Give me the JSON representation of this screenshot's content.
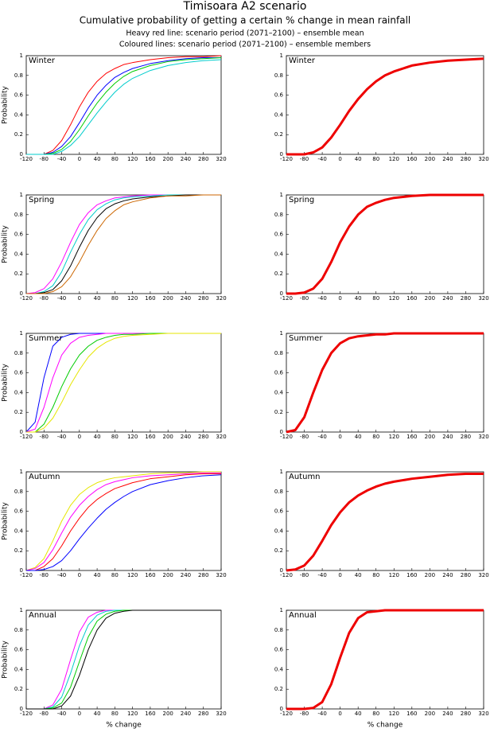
{
  "header": {
    "title": "Timisoara A2 scenario",
    "subtitle": "Cumulative probability of getting a certain % change in mean rainfall",
    "note1": "Heavy red line: scenario period (2071–2100) – ensemble mean",
    "note2": "Coloured lines: scenario period (2071–2100) – ensemble members"
  },
  "chart_data": [
    {
      "type": "line",
      "annotation": "Winter",
      "ylabel": "Probability",
      "x": [
        -120,
        -100,
        -80,
        -60,
        -40,
        -20,
        0,
        20,
        40,
        60,
        80,
        100,
        120,
        160,
        200,
        240,
        280,
        320
      ],
      "xlim": [
        -120,
        320
      ],
      "ylim": [
        0,
        1
      ],
      "xticks": [
        -120,
        -80,
        -40,
        0,
        40,
        80,
        120,
        160,
        200,
        240,
        280,
        320
      ],
      "yticks": [
        0,
        0.2,
        0.4,
        0.6,
        0.8,
        1
      ],
      "line_width": 1,
      "series": [
        {
          "color": "#ff0000",
          "values": [
            0,
            0,
            0,
            0.04,
            0.14,
            0.3,
            0.48,
            0.63,
            0.74,
            0.82,
            0.87,
            0.91,
            0.93,
            0.96,
            0.98,
            0.99,
            0.99,
            1
          ]
        },
        {
          "color": "#0000ff",
          "values": [
            0,
            0,
            0,
            0.02,
            0.08,
            0.18,
            0.32,
            0.47,
            0.6,
            0.7,
            0.78,
            0.83,
            0.87,
            0.92,
            0.95,
            0.97,
            0.98,
            0.98
          ]
        },
        {
          "color": "#00cc00",
          "values": [
            0,
            0,
            0,
            0.01,
            0.05,
            0.13,
            0.25,
            0.39,
            0.52,
            0.63,
            0.72,
            0.79,
            0.84,
            0.9,
            0.94,
            0.96,
            0.97,
            0.98
          ]
        },
        {
          "color": "#00cccc",
          "values": [
            0,
            0,
            0,
            0,
            0.03,
            0.09,
            0.18,
            0.3,
            0.42,
            0.53,
            0.63,
            0.71,
            0.77,
            0.85,
            0.9,
            0.93,
            0.95,
            0.96
          ]
        }
      ]
    },
    {
      "type": "line",
      "annotation": "Winter",
      "x": [
        -120,
        -100,
        -80,
        -60,
        -40,
        -20,
        0,
        20,
        40,
        60,
        80,
        100,
        120,
        160,
        200,
        240,
        280,
        320
      ],
      "xlim": [
        -120,
        320
      ],
      "ylim": [
        0,
        1
      ],
      "xticks": [
        -120,
        -80,
        -40,
        0,
        40,
        80,
        120,
        160,
        200,
        240,
        280,
        320
      ],
      "yticks": [
        0,
        0.2,
        0.4,
        0.6,
        0.8,
        1
      ],
      "line_width": 3,
      "series": [
        {
          "color": "#ee0000",
          "values": [
            0,
            0,
            0,
            0.02,
            0.07,
            0.17,
            0.3,
            0.44,
            0.56,
            0.66,
            0.74,
            0.8,
            0.84,
            0.9,
            0.93,
            0.95,
            0.96,
            0.97
          ]
        }
      ]
    },
    {
      "type": "line",
      "annotation": "Spring",
      "ylabel": "Probability",
      "x": [
        -120,
        -100,
        -80,
        -60,
        -40,
        -20,
        0,
        20,
        40,
        60,
        80,
        100,
        120,
        160,
        200,
        240,
        280,
        320
      ],
      "xlim": [
        -120,
        320
      ],
      "ylim": [
        0,
        1
      ],
      "xticks": [
        -120,
        -80,
        -40,
        0,
        40,
        80,
        120,
        160,
        200,
        240,
        280,
        320
      ],
      "yticks": [
        0,
        0.2,
        0.4,
        0.6,
        0.8,
        1
      ],
      "line_width": 1,
      "series": [
        {
          "color": "#ff00ff",
          "values": [
            0,
            0.01,
            0.05,
            0.15,
            0.32,
            0.52,
            0.7,
            0.82,
            0.9,
            0.94,
            0.97,
            0.98,
            0.99,
            1,
            1,
            1,
            1,
            1
          ]
        },
        {
          "color": "#00cccc",
          "values": [
            0,
            0,
            0.02,
            0.08,
            0.22,
            0.42,
            0.6,
            0.75,
            0.85,
            0.91,
            0.95,
            0.97,
            0.98,
            0.99,
            1,
            1,
            1,
            1
          ]
        },
        {
          "color": "#000000",
          "values": [
            0,
            0,
            0.01,
            0.04,
            0.13,
            0.28,
            0.47,
            0.64,
            0.77,
            0.86,
            0.91,
            0.94,
            0.96,
            0.98,
            0.99,
            1,
            1,
            1
          ]
        },
        {
          "color": "#cc6600",
          "values": [
            0,
            0,
            0,
            0.02,
            0.07,
            0.17,
            0.32,
            0.49,
            0.64,
            0.76,
            0.84,
            0.9,
            0.93,
            0.97,
            0.99,
            0.99,
            1,
            1
          ]
        }
      ]
    },
    {
      "type": "line",
      "annotation": "Spring",
      "x": [
        -120,
        -100,
        -80,
        -60,
        -40,
        -20,
        0,
        20,
        40,
        60,
        80,
        100,
        120,
        160,
        200,
        240,
        280,
        320
      ],
      "xlim": [
        -120,
        320
      ],
      "ylim": [
        0,
        1
      ],
      "xticks": [
        -120,
        -80,
        -40,
        0,
        40,
        80,
        120,
        160,
        200,
        240,
        280,
        320
      ],
      "yticks": [
        0,
        0.2,
        0.4,
        0.6,
        0.8,
        1
      ],
      "line_width": 3,
      "series": [
        {
          "color": "#ee0000",
          "values": [
            0,
            0,
            0.01,
            0.05,
            0.15,
            0.32,
            0.52,
            0.68,
            0.8,
            0.88,
            0.92,
            0.95,
            0.97,
            0.99,
            1,
            1,
            1,
            1
          ]
        }
      ]
    },
    {
      "type": "line",
      "annotation": "Summer",
      "ylabel": "Probability",
      "x": [
        -120,
        -100,
        -80,
        -60,
        -40,
        -20,
        0,
        20,
        40,
        60,
        80,
        100,
        120,
        160,
        200,
        240,
        280,
        320
      ],
      "xlim": [
        -120,
        320
      ],
      "ylim": [
        0,
        1
      ],
      "xticks": [
        -120,
        -80,
        -40,
        0,
        40,
        80,
        120,
        160,
        200,
        240,
        280,
        320
      ],
      "yticks": [
        0,
        0.2,
        0.4,
        0.6,
        0.8,
        1
      ],
      "line_width": 1,
      "series": [
        {
          "color": "#0000ff",
          "values": [
            0,
            0.1,
            0.55,
            0.87,
            0.96,
            0.99,
            1,
            1,
            1,
            1,
            1,
            1,
            1,
            1,
            1,
            1,
            1,
            1
          ]
        },
        {
          "color": "#ff00ff",
          "values": [
            0,
            0.03,
            0.25,
            0.55,
            0.78,
            0.9,
            0.96,
            0.98,
            0.99,
            1,
            1,
            1,
            1,
            1,
            1,
            1,
            1,
            1
          ]
        },
        {
          "color": "#00cc00",
          "values": [
            0,
            0,
            0.08,
            0.25,
            0.46,
            0.64,
            0.78,
            0.87,
            0.93,
            0.96,
            0.98,
            0.99,
            0.99,
            1,
            1,
            1,
            1,
            1
          ]
        },
        {
          "color": "#e6e600",
          "values": [
            0,
            0,
            0.04,
            0.14,
            0.3,
            0.48,
            0.63,
            0.76,
            0.85,
            0.91,
            0.95,
            0.97,
            0.98,
            0.99,
            1,
            1,
            1,
            1
          ]
        }
      ]
    },
    {
      "type": "line",
      "annotation": "Summer",
      "x": [
        -120,
        -100,
        -80,
        -60,
        -40,
        -20,
        0,
        20,
        40,
        60,
        80,
        100,
        120,
        160,
        200,
        240,
        280,
        320
      ],
      "xlim": [
        -120,
        320
      ],
      "ylim": [
        0,
        1
      ],
      "xticks": [
        -120,
        -80,
        -40,
        0,
        40,
        80,
        120,
        160,
        200,
        240,
        280,
        320
      ],
      "yticks": [
        0,
        0.2,
        0.4,
        0.6,
        0.8,
        1
      ],
      "line_width": 3,
      "series": [
        {
          "color": "#ee0000",
          "values": [
            0,
            0.02,
            0.15,
            0.4,
            0.63,
            0.8,
            0.9,
            0.95,
            0.97,
            0.98,
            0.99,
            0.99,
            1,
            1,
            1,
            1,
            1,
            1
          ]
        }
      ]
    },
    {
      "type": "line",
      "annotation": "Autumn",
      "ylabel": "Probability",
      "x": [
        -120,
        -100,
        -80,
        -60,
        -40,
        -20,
        0,
        20,
        40,
        60,
        80,
        100,
        120,
        160,
        200,
        240,
        280,
        320
      ],
      "xlim": [
        -120,
        320
      ],
      "ylim": [
        0,
        1
      ],
      "xticks": [
        -120,
        -80,
        -40,
        0,
        40,
        80,
        120,
        160,
        200,
        240,
        280,
        320
      ],
      "yticks": [
        0,
        0.2,
        0.4,
        0.6,
        0.8,
        1
      ],
      "line_width": 1,
      "series": [
        {
          "color": "#e6e600",
          "values": [
            0,
            0.03,
            0.12,
            0.3,
            0.5,
            0.66,
            0.77,
            0.84,
            0.89,
            0.92,
            0.94,
            0.95,
            0.96,
            0.98,
            0.99,
            0.99,
            1,
            1
          ]
        },
        {
          "color": "#ff00ff",
          "values": [
            0,
            0.02,
            0.08,
            0.21,
            0.38,
            0.54,
            0.66,
            0.75,
            0.82,
            0.87,
            0.9,
            0.92,
            0.94,
            0.96,
            0.97,
            0.98,
            0.99,
            0.99
          ]
        },
        {
          "color": "#ff0000",
          "values": [
            0,
            0,
            0.04,
            0.12,
            0.25,
            0.4,
            0.53,
            0.64,
            0.72,
            0.78,
            0.83,
            0.86,
            0.89,
            0.93,
            0.95,
            0.97,
            0.98,
            0.98
          ]
        },
        {
          "color": "#0000ff",
          "values": [
            0,
            0,
            0.01,
            0.04,
            0.1,
            0.2,
            0.32,
            0.43,
            0.53,
            0.62,
            0.69,
            0.75,
            0.8,
            0.87,
            0.91,
            0.94,
            0.96,
            0.97
          ]
        }
      ]
    },
    {
      "type": "line",
      "annotation": "Autumn",
      "x": [
        -120,
        -100,
        -80,
        -60,
        -40,
        -20,
        0,
        20,
        40,
        60,
        80,
        100,
        120,
        160,
        200,
        240,
        280,
        320
      ],
      "xlim": [
        -120,
        320
      ],
      "ylim": [
        0,
        1
      ],
      "xticks": [
        -120,
        -80,
        -40,
        0,
        40,
        80,
        120,
        160,
        200,
        240,
        280,
        320
      ],
      "yticks": [
        0,
        0.2,
        0.4,
        0.6,
        0.8,
        1
      ],
      "line_width": 3,
      "series": [
        {
          "color": "#ee0000",
          "values": [
            0,
            0.01,
            0.05,
            0.15,
            0.3,
            0.46,
            0.59,
            0.69,
            0.76,
            0.81,
            0.85,
            0.88,
            0.9,
            0.93,
            0.95,
            0.97,
            0.98,
            0.98
          ]
        }
      ]
    },
    {
      "type": "line",
      "annotation": "Annual",
      "ylabel": "Probability",
      "xlabel": "% change",
      "x": [
        -120,
        -100,
        -80,
        -60,
        -40,
        -20,
        0,
        20,
        40,
        60,
        80,
        100,
        120,
        160,
        200,
        240,
        280,
        320
      ],
      "xlim": [
        -120,
        320
      ],
      "ylim": [
        0,
        1
      ],
      "xticks": [
        -120,
        -80,
        -40,
        0,
        40,
        80,
        120,
        160,
        200,
        240,
        280,
        320
      ],
      "yticks": [
        0,
        0.2,
        0.4,
        0.6,
        0.8,
        1
      ],
      "line_width": 1,
      "series": [
        {
          "color": "#ff00ff",
          "values": [
            0,
            0,
            0,
            0.04,
            0.2,
            0.5,
            0.78,
            0.93,
            0.98,
            1,
            1,
            1,
            1,
            1,
            1,
            1,
            1,
            1
          ]
        },
        {
          "color": "#00cccc",
          "values": [
            0,
            0,
            0,
            0.02,
            0.12,
            0.36,
            0.64,
            0.85,
            0.95,
            0.99,
            1,
            1,
            1,
            1,
            1,
            1,
            1,
            1
          ]
        },
        {
          "color": "#00cc00",
          "values": [
            0,
            0,
            0,
            0.01,
            0.06,
            0.22,
            0.48,
            0.73,
            0.89,
            0.96,
            0.99,
            1,
            1,
            1,
            1,
            1,
            1,
            1
          ]
        },
        {
          "color": "#000000",
          "values": [
            0,
            0,
            0,
            0,
            0.03,
            0.13,
            0.34,
            0.6,
            0.8,
            0.92,
            0.97,
            0.99,
            1,
            1,
            1,
            1,
            1,
            1
          ]
        }
      ]
    },
    {
      "type": "line",
      "annotation": "Annual",
      "xlabel": "% change",
      "x": [
        -120,
        -100,
        -80,
        -60,
        -40,
        -20,
        0,
        20,
        40,
        60,
        80,
        100,
        120,
        160,
        200,
        240,
        280,
        320
      ],
      "xlim": [
        -120,
        320
      ],
      "ylim": [
        0,
        1
      ],
      "xticks": [
        -120,
        -80,
        -40,
        0,
        40,
        80,
        120,
        160,
        200,
        240,
        280,
        320
      ],
      "yticks": [
        0,
        0.2,
        0.4,
        0.6,
        0.8,
        1
      ],
      "line_width": 3,
      "series": [
        {
          "color": "#ee0000",
          "values": [
            0,
            0,
            0,
            0.01,
            0.07,
            0.25,
            0.52,
            0.77,
            0.92,
            0.98,
            0.99,
            1,
            1,
            1,
            1,
            1,
            1,
            1
          ]
        }
      ]
    }
  ]
}
